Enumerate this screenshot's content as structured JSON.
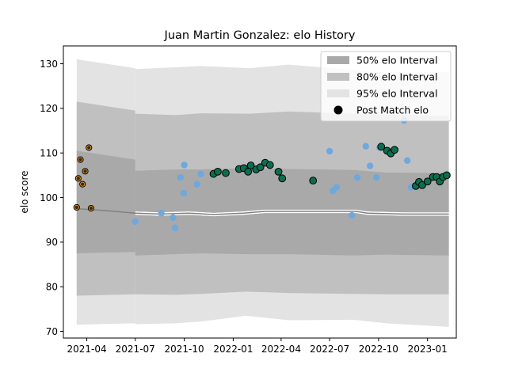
{
  "chart_data": {
    "type": "line",
    "title": "Juan Martin Gonzalez: elo History",
    "xlabel": "",
    "ylabel": "elo score",
    "x_axis": {
      "type": "date",
      "range": [
        "2021-02-16",
        "2023-02-24"
      ],
      "ticks": [
        "2021-04",
        "2021-07",
        "2021-10",
        "2022-01",
        "2022-04",
        "2022-07",
        "2022-10",
        "2023-01"
      ]
    },
    "y_axis": {
      "range": [
        68.5,
        134
      ],
      "ticks": [
        70,
        80,
        90,
        100,
        110,
        120,
        130
      ]
    },
    "grid": false,
    "legend": {
      "placement": "top-right",
      "entries": [
        {
          "label": "50% elo Interval",
          "color": "#a9a9a9"
        },
        {
          "label": "80% elo Interval",
          "color": "#c0c0c0"
        },
        {
          "label": "95% elo Interval",
          "color": "#e3e3e3"
        },
        {
          "label": "Post Match elo",
          "color": "#000000"
        }
      ]
    },
    "colors": {
      "band50": "#a9a9a9",
      "band80": "#c0c0c0",
      "band95": "#e3e3e3",
      "median": "#808080",
      "point_blue": "#6fa8dc",
      "point_green": "#0b6e4f",
      "point_orange_ring": "#f0a030"
    },
    "median": [
      {
        "x": "2021-03-14",
        "y": 97.5
      },
      {
        "x": "2021-04-08",
        "y": 97.3
      },
      {
        "x": "2021-05-15",
        "y": 97.0
      },
      {
        "x": "2021-07-01",
        "y": 96.5
      },
      {
        "x": "2021-08-15",
        "y": 96.3
      },
      {
        "x": "2021-10-10",
        "y": 96.5
      },
      {
        "x": "2021-11-25",
        "y": 96.2
      },
      {
        "x": "2022-01-20",
        "y": 96.5
      },
      {
        "x": "2022-03-01",
        "y": 96.9
      },
      {
        "x": "2022-05-15",
        "y": 96.9
      },
      {
        "x": "2022-08-20",
        "y": 96.9
      },
      {
        "x": "2022-09-10",
        "y": 96.5
      },
      {
        "x": "2022-11-15",
        "y": 96.3
      },
      {
        "x": "2023-02-10",
        "y": 96.3
      }
    ],
    "bands": [
      {
        "name": "95% elo Interval",
        "level": 95,
        "before_2021_07": {
          "lower": 71.5,
          "upper": 131.0
        },
        "upper": [
          {
            "x": "2021-07-01",
            "y": 128.8
          },
          {
            "x": "2021-09-15",
            "y": 129.2
          },
          {
            "x": "2021-11-01",
            "y": 129.5
          },
          {
            "x": "2022-02-01",
            "y": 129.0
          },
          {
            "x": "2022-04-15",
            "y": 129.8
          },
          {
            "x": "2022-08-15",
            "y": 128.6
          },
          {
            "x": "2022-10-15",
            "y": 128.0
          },
          {
            "x": "2023-02-10",
            "y": 128.2
          }
        ],
        "lower": [
          {
            "x": "2021-07-01",
            "y": 71.6
          },
          {
            "x": "2021-09-15",
            "y": 71.8
          },
          {
            "x": "2021-11-01",
            "y": 72.2
          },
          {
            "x": "2022-01-25",
            "y": 73.5
          },
          {
            "x": "2022-04-15",
            "y": 72.5
          },
          {
            "x": "2022-08-15",
            "y": 72.6
          },
          {
            "x": "2022-10-15",
            "y": 71.8
          },
          {
            "x": "2023-02-10",
            "y": 71.0
          }
        ]
      },
      {
        "name": "80% elo Interval",
        "level": 80,
        "before_2021_07": {
          "lower": 78.0,
          "upper": 121.5
        },
        "upper": [
          {
            "x": "2021-07-01",
            "y": 118.8
          },
          {
            "x": "2021-09-15",
            "y": 118.5
          },
          {
            "x": "2021-11-01",
            "y": 118.9
          },
          {
            "x": "2022-02-01",
            "y": 118.8
          },
          {
            "x": "2022-04-15",
            "y": 119.3
          },
          {
            "x": "2022-08-15",
            "y": 118.8
          },
          {
            "x": "2022-10-15",
            "y": 118.6
          },
          {
            "x": "2023-02-10",
            "y": 118.3
          }
        ],
        "lower": [
          {
            "x": "2021-07-01",
            "y": 78.3
          },
          {
            "x": "2021-09-15",
            "y": 78.2
          },
          {
            "x": "2021-11-01",
            "y": 78.4
          },
          {
            "x": "2022-01-25",
            "y": 78.9
          },
          {
            "x": "2022-04-15",
            "y": 78.6
          },
          {
            "x": "2022-08-15",
            "y": 78.4
          },
          {
            "x": "2022-10-15",
            "y": 78.3
          },
          {
            "x": "2023-02-10",
            "y": 78.3
          }
        ]
      },
      {
        "name": "50% elo Interval",
        "level": 50,
        "before_2021_07": {
          "lower": 87.5,
          "upper": 110.5
        },
        "upper": [
          {
            "x": "2021-07-01",
            "y": 106.0
          },
          {
            "x": "2021-09-15",
            "y": 106.3
          },
          {
            "x": "2021-11-01",
            "y": 106.3
          },
          {
            "x": "2022-02-01",
            "y": 106.6
          },
          {
            "x": "2022-04-15",
            "y": 106.4
          },
          {
            "x": "2022-08-15",
            "y": 106.2
          },
          {
            "x": "2022-10-15",
            "y": 105.6
          },
          {
            "x": "2023-02-10",
            "y": 105.5
          }
        ],
        "lower": [
          {
            "x": "2021-07-01",
            "y": 87.0
          },
          {
            "x": "2021-09-15",
            "y": 87.3
          },
          {
            "x": "2021-11-01",
            "y": 87.5
          },
          {
            "x": "2022-01-25",
            "y": 87.3
          },
          {
            "x": "2022-04-15",
            "y": 87.3
          },
          {
            "x": "2022-08-15",
            "y": 87.0
          },
          {
            "x": "2022-10-15",
            "y": 87.2
          },
          {
            "x": "2023-02-10",
            "y": 87.0
          }
        ]
      }
    ],
    "series": [
      {
        "name": "Post Match elo",
        "marker_style": "orange-ring",
        "points": [
          {
            "x": "2021-03-13",
            "y": 97.8
          },
          {
            "x": "2021-03-16",
            "y": 104.3
          },
          {
            "x": "2021-03-20",
            "y": 108.5
          },
          {
            "x": "2021-03-24",
            "y": 103.0
          },
          {
            "x": "2021-03-29",
            "y": 105.9
          },
          {
            "x": "2021-04-05",
            "y": 111.2
          },
          {
            "x": "2021-04-09",
            "y": 97.6
          }
        ]
      },
      {
        "marker_style": "blue",
        "points": [
          {
            "x": "2021-07-01",
            "y": 94.6
          },
          {
            "x": "2021-08-19",
            "y": 96.5
          },
          {
            "x": "2021-09-10",
            "y": 95.5
          },
          {
            "x": "2021-09-14",
            "y": 93.2
          },
          {
            "x": "2021-09-24",
            "y": 104.5
          },
          {
            "x": "2021-09-30",
            "y": 101.0
          },
          {
            "x": "2021-10-01",
            "y": 107.3
          },
          {
            "x": "2021-10-25",
            "y": 103.0
          },
          {
            "x": "2021-11-01",
            "y": 105.3
          },
          {
            "x": "2022-07-01",
            "y": 110.4
          },
          {
            "x": "2022-07-07",
            "y": 101.5
          },
          {
            "x": "2022-07-14",
            "y": 102.3
          },
          {
            "x": "2022-08-12",
            "y": 96.0
          },
          {
            "x": "2022-08-22",
            "y": 104.5
          },
          {
            "x": "2022-09-07",
            "y": 111.5
          },
          {
            "x": "2022-09-15",
            "y": 107.1
          },
          {
            "x": "2022-09-27",
            "y": 104.5
          },
          {
            "x": "2022-10-03",
            "y": 111.2
          },
          {
            "x": "2022-11-18",
            "y": 117.3
          },
          {
            "x": "2022-11-24",
            "y": 108.3
          },
          {
            "x": "2022-12-01",
            "y": 102.3
          }
        ]
      },
      {
        "marker_style": "green",
        "points": [
          {
            "x": "2021-11-25",
            "y": 105.3
          },
          {
            "x": "2021-12-03",
            "y": 105.8
          },
          {
            "x": "2021-12-18",
            "y": 105.5
          },
          {
            "x": "2022-01-12",
            "y": 106.4
          },
          {
            "x": "2022-01-21",
            "y": 106.6
          },
          {
            "x": "2022-01-29",
            "y": 105.8
          },
          {
            "x": "2022-02-03",
            "y": 107.2
          },
          {
            "x": "2022-02-13",
            "y": 106.3
          },
          {
            "x": "2022-02-21",
            "y": 106.8
          },
          {
            "x": "2022-03-02",
            "y": 107.8
          },
          {
            "x": "2022-03-11",
            "y": 107.3
          },
          {
            "x": "2022-03-27",
            "y": 105.8
          },
          {
            "x": "2022-04-03",
            "y": 104.3
          },
          {
            "x": "2022-05-31",
            "y": 103.8
          },
          {
            "x": "2022-10-06",
            "y": 111.4
          },
          {
            "x": "2022-10-17",
            "y": 110.5
          },
          {
            "x": "2022-10-24",
            "y": 109.9
          },
          {
            "x": "2022-10-31",
            "y": 110.7
          },
          {
            "x": "2022-12-10",
            "y": 102.6
          },
          {
            "x": "2022-12-16",
            "y": 103.5
          },
          {
            "x": "2022-12-22",
            "y": 102.8
          },
          {
            "x": "2023-01-01",
            "y": 103.6
          },
          {
            "x": "2023-01-11",
            "y": 104.6
          },
          {
            "x": "2023-01-18",
            "y": 104.6
          },
          {
            "x": "2023-01-24",
            "y": 103.6
          },
          {
            "x": "2023-01-30",
            "y": 104.6
          },
          {
            "x": "2023-02-06",
            "y": 105.0
          }
        ]
      }
    ]
  }
}
